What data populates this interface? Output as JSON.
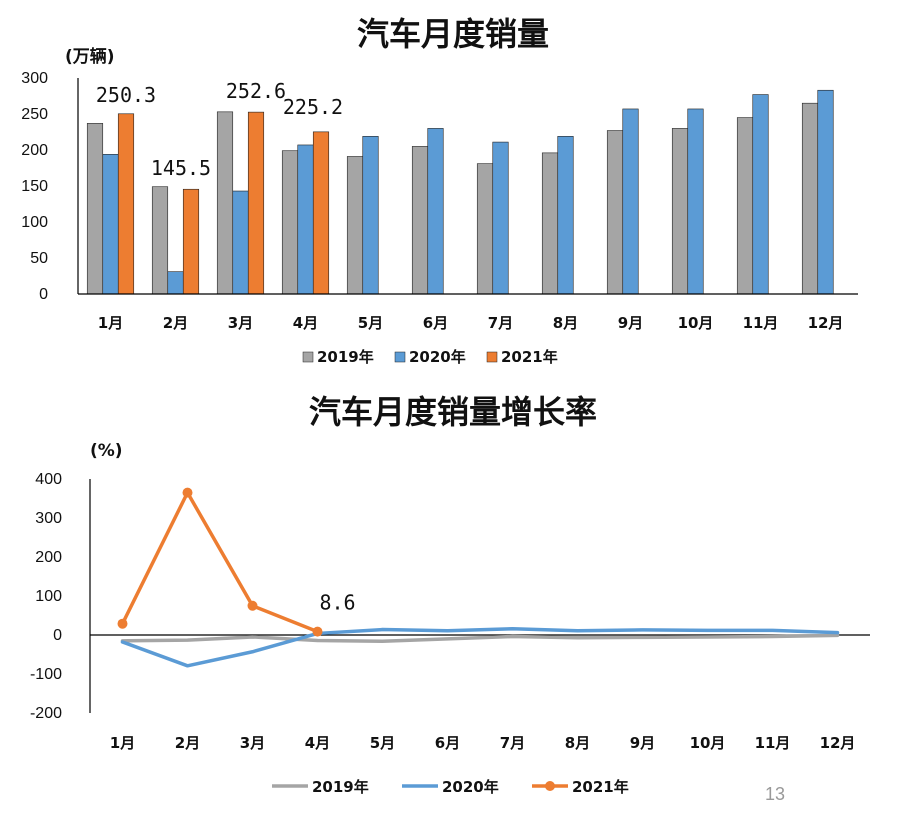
{
  "page_number": "13",
  "chart_data": [
    {
      "type": "bar",
      "title": "汽车月度销量",
      "ylabel": "(万辆)",
      "ylim": [
        0,
        300
      ],
      "yticks": [
        "0",
        "50",
        "100",
        "150",
        "200",
        "250",
        "300"
      ],
      "categories": [
        "1月",
        "2月",
        "3月",
        "4月",
        "5月",
        "6月",
        "7月",
        "8月",
        "9月",
        "10月",
        "11月",
        "12月"
      ],
      "series": [
        {
          "name": "2019年",
          "color": "#a5a5a5",
          "values": [
            237,
            149,
            253,
            199,
            191,
            205,
            181,
            196,
            227,
            230,
            245,
            265
          ]
        },
        {
          "name": "2020年",
          "color": "#5b9bd5",
          "values": [
            194,
            31,
            143,
            207,
            219,
            230,
            211,
            219,
            257,
            257,
            277,
            283
          ]
        },
        {
          "name": "2021年",
          "color": "#ed7d31",
          "values": [
            250.3,
            145.5,
            252.6,
            225.2,
            null,
            null,
            null,
            null,
            null,
            null,
            null,
            null
          ]
        }
      ],
      "data_labels": [
        {
          "series": 2,
          "index": 0,
          "text": "250.3"
        },
        {
          "series": 2,
          "index": 1,
          "text": "145.5"
        },
        {
          "series": 2,
          "index": 2,
          "text": "252.6"
        },
        {
          "series": 2,
          "index": 3,
          "text": "225.2"
        }
      ],
      "legend": "bottom"
    },
    {
      "type": "line",
      "title": "汽车月度销量增长率",
      "ylabel": "(%)",
      "ylim": [
        -200,
        400
      ],
      "yticks": [
        "-200",
        "-100",
        "0",
        "100",
        "200",
        "300",
        "400"
      ],
      "categories": [
        "1月",
        "2月",
        "3月",
        "4月",
        "5月",
        "6月",
        "7月",
        "8月",
        "9月",
        "10月",
        "11月",
        "12月"
      ],
      "series": [
        {
          "name": "2019年",
          "color": "#a5a5a5",
          "values": [
            -15,
            -13,
            -5,
            -14,
            -16,
            -10,
            -4,
            -7,
            -6,
            -5,
            -4,
            -1
          ]
        },
        {
          "name": "2020年",
          "color": "#5b9bd5",
          "values": [
            -18,
            -79,
            -43,
            4,
            14,
            11,
            16,
            11,
            13,
            12,
            12,
            6
          ]
        },
        {
          "name": "2021年",
          "color": "#ed7d31",
          "values": [
            29,
            365,
            75,
            8.6,
            null,
            null,
            null,
            null,
            null,
            null,
            null,
            null
          ]
        }
      ],
      "data_labels": [
        {
          "series": 2,
          "index": 3,
          "text": "8.6"
        }
      ],
      "legend": "bottom"
    }
  ]
}
